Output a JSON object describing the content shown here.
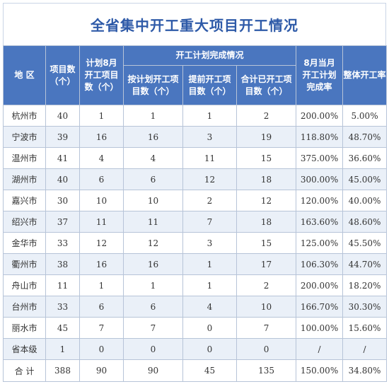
{
  "title": "全省集中开工重大项目开工情况",
  "headers": {
    "region": "地  区",
    "project_count": [
      "项目数",
      "（个）"
    ],
    "planned_aug": [
      "计划8月",
      "开工项目",
      "数（个）"
    ],
    "plan_completion_group": "开工计划完成情况",
    "on_plan": [
      "按计划开工项",
      "目数（个）"
    ],
    "early": [
      "提前开工项",
      "目数（个）"
    ],
    "total_started": [
      "合计已开工项",
      "目数（个）"
    ],
    "aug_rate": [
      "8月当月",
      "开工计划",
      "完成率"
    ],
    "overall_rate": "整体开工率"
  },
  "rows": [
    {
      "region": "杭州市",
      "project_count": "40",
      "planned_aug": "1",
      "on_plan": "1",
      "early": "1",
      "total_started": "2",
      "aug_rate": "200.00%",
      "overall_rate": "5.00%"
    },
    {
      "region": "宁波市",
      "project_count": "39",
      "planned_aug": "16",
      "on_plan": "16",
      "early": "3",
      "total_started": "19",
      "aug_rate": "118.80%",
      "overall_rate": "48.70%"
    },
    {
      "region": "温州市",
      "project_count": "41",
      "planned_aug": "4",
      "on_plan": "4",
      "early": "11",
      "total_started": "15",
      "aug_rate": "375.00%",
      "overall_rate": "36.60%"
    },
    {
      "region": "湖州市",
      "project_count": "40",
      "planned_aug": "6",
      "on_plan": "6",
      "early": "12",
      "total_started": "18",
      "aug_rate": "300.00%",
      "overall_rate": "45.00%"
    },
    {
      "region": "嘉兴市",
      "project_count": "30",
      "planned_aug": "10",
      "on_plan": "10",
      "early": "2",
      "total_started": "12",
      "aug_rate": "120.00%",
      "overall_rate": "40.00%"
    },
    {
      "region": "绍兴市",
      "project_count": "37",
      "planned_aug": "11",
      "on_plan": "11",
      "early": "7",
      "total_started": "18",
      "aug_rate": "163.60%",
      "overall_rate": "48.60%"
    },
    {
      "region": "金华市",
      "project_count": "33",
      "planned_aug": "12",
      "on_plan": "12",
      "early": "3",
      "total_started": "15",
      "aug_rate": "125.00%",
      "overall_rate": "45.50%"
    },
    {
      "region": "衢州市",
      "project_count": "38",
      "planned_aug": "16",
      "on_plan": "16",
      "early": "1",
      "total_started": "17",
      "aug_rate": "106.30%",
      "overall_rate": "44.70%"
    },
    {
      "region": "舟山市",
      "project_count": "11",
      "planned_aug": "1",
      "on_plan": "1",
      "early": "1",
      "total_started": "2",
      "aug_rate": "200.00%",
      "overall_rate": "18.20%"
    },
    {
      "region": "台州市",
      "project_count": "33",
      "planned_aug": "6",
      "on_plan": "6",
      "early": "4",
      "total_started": "10",
      "aug_rate": "166.70%",
      "overall_rate": "30.30%"
    },
    {
      "region": "丽水市",
      "project_count": "45",
      "planned_aug": "7",
      "on_plan": "7",
      "early": "0",
      "total_started": "7",
      "aug_rate": "100.00%",
      "overall_rate": "15.60%"
    },
    {
      "region": "省本级",
      "project_count": "1",
      "planned_aug": "0",
      "on_plan": "0",
      "early": "0",
      "total_started": "0",
      "aug_rate": "/",
      "overall_rate": "/"
    }
  ],
  "total": {
    "region": "合  计",
    "project_count": "388",
    "planned_aug": "90",
    "on_plan": "90",
    "early": "45",
    "total_started": "135",
    "aug_rate": "150.00%",
    "overall_rate": "34.80%"
  },
  "colors": {
    "header_bg": "#4a76bf",
    "title": "#2e5aa8",
    "stripe": "#eaf0f8"
  }
}
